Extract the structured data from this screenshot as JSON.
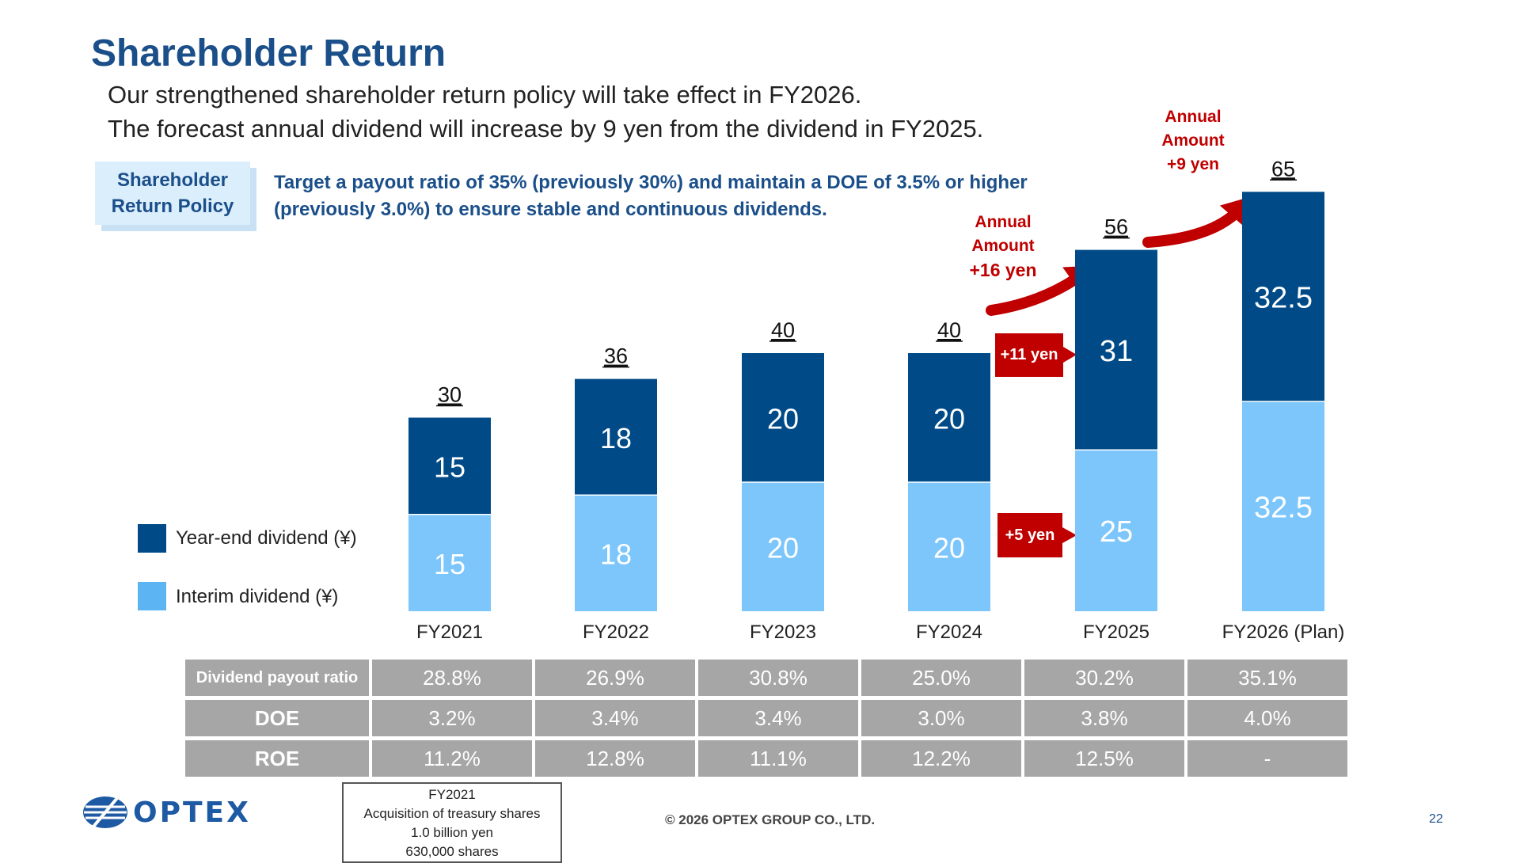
{
  "title": "Shareholder Return",
  "subtitle_lines": [
    "Our strengthened shareholder return policy will take effect in FY2026.",
    "The forecast annual dividend will increase by 9 yen from the dividend in FY2025."
  ],
  "policy": {
    "label_line1": "Shareholder",
    "label_line2": "Return Policy",
    "text_line1": "Target a payout ratio of 35% (previously 30%) and maintain a DOE of 3.5% or higher",
    "text_line2": "(previously 3.0%) to ensure stable and continuous dividends."
  },
  "colors": {
    "year_end": "#004b87",
    "interim": "#7cc6fb",
    "accent": "#c00000",
    "title": "#1b4f8a",
    "table": "#a6a6a6"
  },
  "chart_data": {
    "type": "bar",
    "stacked": true,
    "categories": [
      "FY2021",
      "FY2022",
      "FY2023",
      "FY2024",
      "FY2025",
      "FY2026 (Plan)"
    ],
    "series": [
      {
        "name": "Interim dividend (¥)",
        "values": [
          15,
          18,
          20,
          20,
          25,
          32.5
        ]
      },
      {
        "name": "Year-end dividend (¥)",
        "values": [
          15,
          18,
          20,
          20,
          31,
          32.5
        ]
      }
    ],
    "totals": [
      "30",
      "36",
      "40",
      "40",
      "56",
      "65"
    ],
    "value_labels": {
      "interim": [
        "15",
        "18",
        "20",
        "20",
        "25",
        "32.5"
      ],
      "year_end": [
        "15",
        "18",
        "20",
        "20",
        "31",
        "32.5"
      ]
    },
    "legend": {
      "year_end": "Year-end dividend (¥)",
      "interim": "Interim dividend (¥)",
      "placement": "left"
    },
    "annotations": {
      "fy2025_annual": {
        "line1": "Annual",
        "line2": "Amount",
        "line3": "+16 yen"
      },
      "fy2026_annual": {
        "line1": "Annual",
        "line2": "Amount",
        "line3": "+9 yen"
      },
      "year_end_increase": "+11 yen",
      "interim_increase": "+5 yen"
    },
    "ylim": [
      0,
      70
    ]
  },
  "table": {
    "rows": [
      {
        "label": "Dividend payout ratio",
        "values": [
          "28.8%",
          "26.9%",
          "30.8%",
          "25.0%",
          "30.2%",
          "35.1%"
        ]
      },
      {
        "label": "DOE",
        "values": [
          "3.2%",
          "3.4%",
          "3.4%",
          "3.0%",
          "3.8%",
          "4.0%"
        ]
      },
      {
        "label": "ROE",
        "values": [
          "11.2%",
          "12.8%",
          "11.1%",
          "12.2%",
          "12.5%",
          "-"
        ]
      }
    ]
  },
  "note": {
    "line1": "FY2021",
    "line2": "Acquisition of treasury shares",
    "line3": "1.0 billion yen",
    "line4": "630,000 shares"
  },
  "footer": "© 2026 OPTEX GROUP CO., LTD.",
  "page_number": "22",
  "logo_text": "OPTEX"
}
